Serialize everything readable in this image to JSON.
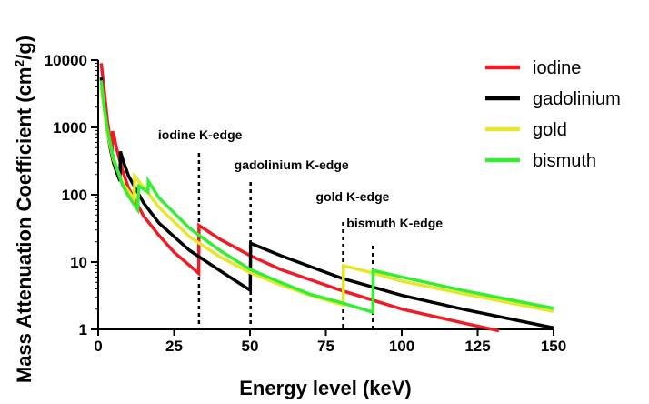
{
  "chart_data": {
    "type": "line",
    "title": "",
    "xlabel": "Energy level (keV)",
    "ylabel_main": "Mass Attenuation  Coefficient (cm",
    "ylabel_sup": "2",
    "ylabel_end": "/g)",
    "xlim": [
      0,
      150
    ],
    "ylim": [
      1,
      10000
    ],
    "yscale": "log",
    "x_ticks": [
      0,
      25,
      50,
      75,
      100,
      125,
      150
    ],
    "y_ticks": [
      1,
      10,
      100,
      1000,
      10000
    ],
    "x_tick_labels": [
      "0",
      "25",
      "50",
      "75",
      "100",
      "125",
      "150"
    ],
    "y_tick_labels": [
      "1",
      "10",
      "100",
      "1000",
      "10000"
    ],
    "grid": false,
    "legend_position": "top-right",
    "series": [
      {
        "name": "iodine",
        "color": "#ee1c24",
        "points": [
          [
            1,
            9000
          ],
          [
            2,
            3500
          ],
          [
            3,
            1300
          ],
          [
            4,
            620
          ],
          [
            4.6,
            420
          ],
          [
            4.7,
            880
          ],
          [
            5.2,
            760
          ],
          [
            6,
            500
          ],
          [
            8,
            230
          ],
          [
            10,
            125
          ],
          [
            15,
            48
          ],
          [
            20,
            25
          ],
          [
            25,
            14
          ],
          [
            30,
            9
          ],
          [
            33.1,
            6.8
          ],
          [
            33.2,
            35
          ],
          [
            40,
            22
          ],
          [
            50,
            12.5
          ],
          [
            60,
            7.8
          ],
          [
            80,
            3.8
          ],
          [
            100,
            2.0
          ],
          [
            120,
            1.25
          ],
          [
            132,
            0.95
          ]
        ]
      },
      {
        "name": "gadolinium",
        "color": "#000000",
        "points": [
          [
            1,
            5500
          ],
          [
            2,
            2000
          ],
          [
            3,
            900
          ],
          [
            4,
            480
          ],
          [
            5,
            300
          ],
          [
            6,
            220
          ],
          [
            7.2,
            160
          ],
          [
            7.3,
            440
          ],
          [
            8.4,
            300
          ],
          [
            10,
            190
          ],
          [
            15,
            75
          ],
          [
            20,
            38
          ],
          [
            30,
            15
          ],
          [
            40,
            7.5
          ],
          [
            50.1,
            3.8
          ],
          [
            50.2,
            19
          ],
          [
            60,
            12.5
          ],
          [
            80,
            5.8
          ],
          [
            100,
            3.2
          ],
          [
            120,
            2.0
          ],
          [
            150,
            1.05
          ]
        ]
      },
      {
        "name": "gold",
        "color": "#e6e62a",
        "points": [
          [
            1,
            4000
          ],
          [
            2,
            1800
          ],
          [
            3,
            850
          ],
          [
            5,
            330
          ],
          [
            8,
            150
          ],
          [
            11.9,
            85
          ],
          [
            12,
            190
          ],
          [
            14.3,
            140
          ],
          [
            15,
            130
          ],
          [
            20,
            65
          ],
          [
            30,
            24
          ],
          [
            40,
            12
          ],
          [
            50,
            7
          ],
          [
            60,
            4.6
          ],
          [
            70,
            3.2
          ],
          [
            80.7,
            2.3
          ],
          [
            80.8,
            8.8
          ],
          [
            90,
            7
          ],
          [
            100,
            5.2
          ],
          [
            120,
            3.4
          ],
          [
            150,
            1.85
          ]
        ]
      },
      {
        "name": "bismuth",
        "color": "#33ee33",
        "points": [
          [
            1,
            5000
          ],
          [
            2,
            2000
          ],
          [
            3,
            950
          ],
          [
            5,
            350
          ],
          [
            8,
            140
          ],
          [
            10,
            95
          ],
          [
            13,
            60
          ],
          [
            13.4,
            135
          ],
          [
            16.4,
            110
          ],
          [
            16.5,
            160
          ],
          [
            20,
            90
          ],
          [
            30,
            32
          ],
          [
            40,
            15
          ],
          [
            50,
            7.8
          ],
          [
            60,
            5
          ],
          [
            70,
            3.3
          ],
          [
            80,
            2.5
          ],
          [
            90.5,
            1.8
          ],
          [
            90.6,
            7.5
          ],
          [
            100,
            6.0
          ],
          [
            120,
            3.8
          ],
          [
            150,
            2.05
          ]
        ]
      }
    ],
    "annotations": [
      {
        "label": "iodine K-edge",
        "x": 33.2
      },
      {
        "label": "gadolinium K-edge",
        "x": 50.2
      },
      {
        "label": "gold K-edge",
        "x": 80.7
      },
      {
        "label": "bismuth K-edge",
        "x": 90.5
      }
    ]
  }
}
